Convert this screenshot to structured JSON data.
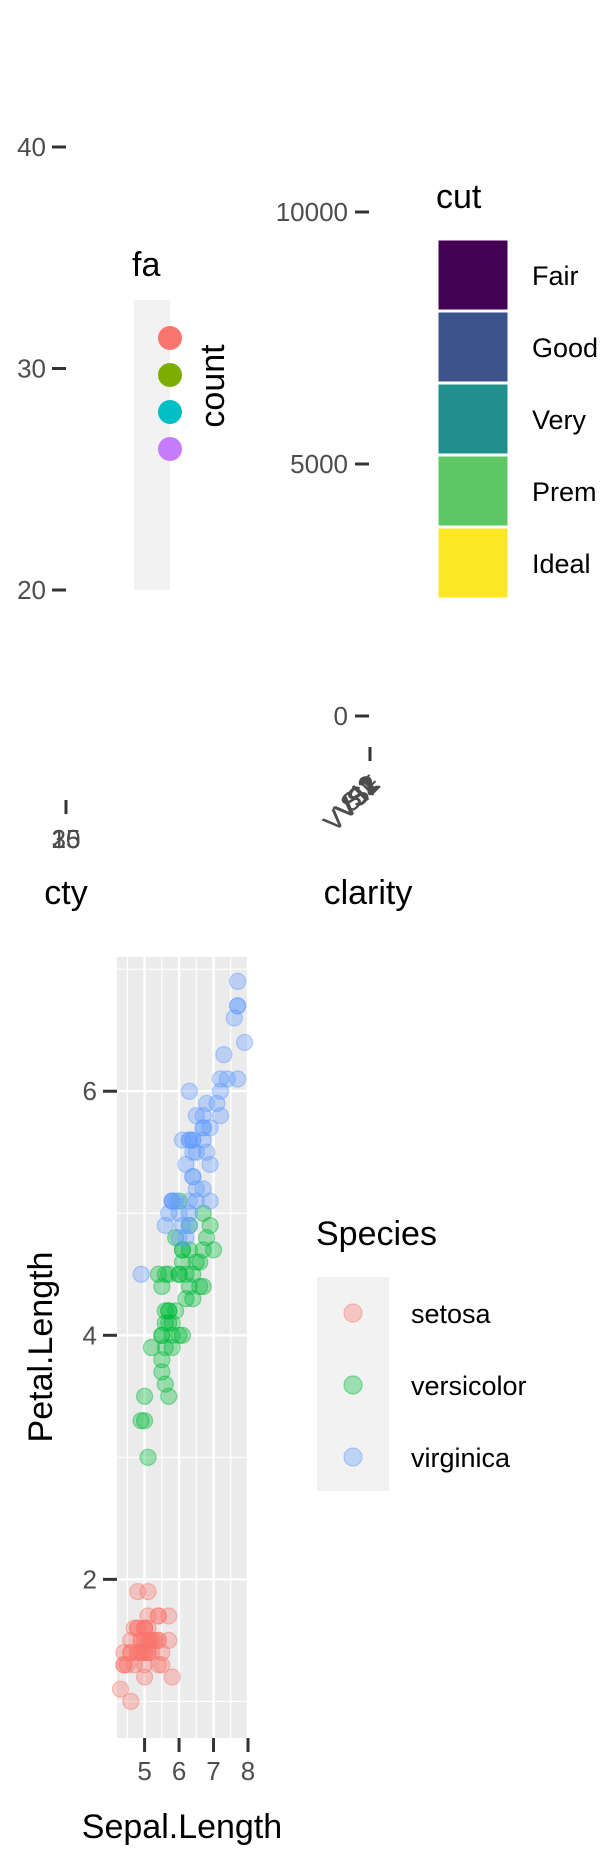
{
  "chart_data": [
    {
      "type": "scatter",
      "xlabel": "cty",
      "ylabel": "",
      "ylim": [
        16,
        44
      ],
      "y_ticks": [
        20,
        30,
        40
      ],
      "x_tick_labels": [
        "20",
        "35",
        "15"
      ],
      "legend": {
        "title": "fa",
        "placement": "right",
        "colors": [
          "#F8766D",
          "#7CAE00",
          "#00BFC4",
          "#C77CFF"
        ]
      }
    },
    {
      "type": "bar",
      "xlabel": "clarity",
      "ylabel": "count",
      "ylim": [
        0,
        10500
      ],
      "y_ticks": [
        0,
        5000,
        10000
      ],
      "x_tick_labels": [
        "I1",
        "SI2",
        "SI1",
        "VS2",
        "VS1",
        "VVS2",
        "VVS1",
        "IF"
      ],
      "legend": {
        "title": "cut",
        "placement": "right",
        "entries": [
          {
            "label": "Fair",
            "color": "#440154"
          },
          {
            "label": "Good",
            "color": "#3B528B"
          },
          {
            "label": "Very",
            "color": "#21908C"
          },
          {
            "label": "Prem",
            "color": "#5DC863"
          },
          {
            "label": "Ideal",
            "color": "#FDE725"
          }
        ]
      }
    },
    {
      "type": "scatter",
      "xlabel": "Sepal.Length",
      "ylabel": "Petal.Length",
      "xlim": [
        4.2,
        8.0
      ],
      "ylim": [
        0.7,
        7.1
      ],
      "x_ticks": [
        5,
        6,
        7,
        8
      ],
      "y_ticks": [
        2,
        4,
        6
      ],
      "grid": true,
      "legend": {
        "title": "Species",
        "placement": "right"
      },
      "series": [
        {
          "name": "setosa",
          "color": "#F8766D",
          "points": [
            [
              5.1,
              1.4
            ],
            [
              4.9,
              1.4
            ],
            [
              4.7,
              1.3
            ],
            [
              4.6,
              1.5
            ],
            [
              5.0,
              1.4
            ],
            [
              5.4,
              1.7
            ],
            [
              4.6,
              1.4
            ],
            [
              5.0,
              1.5
            ],
            [
              4.4,
              1.4
            ],
            [
              4.9,
              1.5
            ],
            [
              5.4,
              1.5
            ],
            [
              4.8,
              1.6
            ],
            [
              4.8,
              1.4
            ],
            [
              4.3,
              1.1
            ],
            [
              5.8,
              1.2
            ],
            [
              5.7,
              1.5
            ],
            [
              5.4,
              1.3
            ],
            [
              5.1,
              1.4
            ],
            [
              5.7,
              1.7
            ],
            [
              5.1,
              1.5
            ],
            [
              5.4,
              1.7
            ],
            [
              5.1,
              1.5
            ],
            [
              4.6,
              1.0
            ],
            [
              5.1,
              1.7
            ],
            [
              4.8,
              1.9
            ],
            [
              5.0,
              1.6
            ],
            [
              5.0,
              1.6
            ],
            [
              5.2,
              1.5
            ],
            [
              5.2,
              1.4
            ],
            [
              4.7,
              1.6
            ],
            [
              4.8,
              1.6
            ],
            [
              5.4,
              1.5
            ],
            [
              5.2,
              1.5
            ],
            [
              5.5,
              1.4
            ],
            [
              4.9,
              1.5
            ],
            [
              5.0,
              1.2
            ],
            [
              5.5,
              1.3
            ],
            [
              4.9,
              1.4
            ],
            [
              4.4,
              1.3
            ],
            [
              5.1,
              1.5
            ],
            [
              5.0,
              1.3
            ],
            [
              4.5,
              1.3
            ],
            [
              4.4,
              1.3
            ],
            [
              5.0,
              1.6
            ],
            [
              5.1,
              1.9
            ],
            [
              4.8,
              1.4
            ],
            [
              5.1,
              1.6
            ],
            [
              4.6,
              1.4
            ],
            [
              5.3,
              1.5
            ],
            [
              5.0,
              1.4
            ]
          ]
        },
        {
          "name": "versicolor",
          "color": "#00BA38",
          "points": [
            [
              7.0,
              4.7
            ],
            [
              6.4,
              4.5
            ],
            [
              6.9,
              4.9
            ],
            [
              5.5,
              4.0
            ],
            [
              6.5,
              4.6
            ],
            [
              5.7,
              4.5
            ],
            [
              6.3,
              4.7
            ],
            [
              4.9,
              3.3
            ],
            [
              6.6,
              4.6
            ],
            [
              5.2,
              3.9
            ],
            [
              5.0,
              3.5
            ],
            [
              5.9,
              4.2
            ],
            [
              6.0,
              4.0
            ],
            [
              6.1,
              4.7
            ],
            [
              5.6,
              3.6
            ],
            [
              6.7,
              4.4
            ],
            [
              5.6,
              4.5
            ],
            [
              5.8,
              4.1
            ],
            [
              6.2,
              4.5
            ],
            [
              5.6,
              3.9
            ],
            [
              5.9,
              4.8
            ],
            [
              6.1,
              4.0
            ],
            [
              6.3,
              4.9
            ],
            [
              6.1,
              4.7
            ],
            [
              6.4,
              4.3
            ],
            [
              6.6,
              4.4
            ],
            [
              6.8,
              4.8
            ],
            [
              6.7,
              5.0
            ],
            [
              6.0,
              4.5
            ],
            [
              5.7,
              3.5
            ],
            [
              5.5,
              3.8
            ],
            [
              5.5,
              3.7
            ],
            [
              5.8,
              3.9
            ],
            [
              6.0,
              5.1
            ],
            [
              5.4,
              4.5
            ],
            [
              6.0,
              4.5
            ],
            [
              6.7,
              4.7
            ],
            [
              6.3,
              4.4
            ],
            [
              5.6,
              4.1
            ],
            [
              5.5,
              4.0
            ],
            [
              5.5,
              4.4
            ],
            [
              6.1,
              4.6
            ],
            [
              5.8,
              4.0
            ],
            [
              5.0,
              3.3
            ],
            [
              5.6,
              4.2
            ],
            [
              5.7,
              4.2
            ],
            [
              5.7,
              4.2
            ],
            [
              6.2,
              4.3
            ],
            [
              5.1,
              3.0
            ],
            [
              5.7,
              4.1
            ]
          ]
        },
        {
          "name": "virginica",
          "color": "#619CFF",
          "points": [
            [
              6.3,
              6.0
            ],
            [
              5.8,
              5.1
            ],
            [
              7.1,
              5.9
            ],
            [
              6.3,
              5.6
            ],
            [
              6.5,
              5.8
            ],
            [
              7.6,
              6.6
            ],
            [
              4.9,
              4.5
            ],
            [
              7.3,
              6.3
            ],
            [
              6.7,
              5.8
            ],
            [
              7.2,
              6.1
            ],
            [
              6.5,
              5.1
            ],
            [
              6.4,
              5.3
            ],
            [
              6.8,
              5.5
            ],
            [
              5.7,
              5.0
            ],
            [
              5.8,
              5.1
            ],
            [
              6.4,
              5.3
            ],
            [
              6.5,
              5.5
            ],
            [
              7.7,
              6.7
            ],
            [
              7.7,
              6.9
            ],
            [
              6.0,
              5.0
            ],
            [
              6.9,
              5.7
            ],
            [
              5.6,
              4.9
            ],
            [
              7.7,
              6.7
            ],
            [
              6.3,
              4.9
            ],
            [
              6.7,
              5.7
            ],
            [
              7.2,
              6.0
            ],
            [
              6.2,
              4.8
            ],
            [
              6.1,
              4.9
            ],
            [
              6.4,
              5.6
            ],
            [
              7.2,
              5.8
            ],
            [
              7.4,
              6.1
            ],
            [
              7.9,
              6.4
            ],
            [
              6.4,
              5.6
            ],
            [
              6.3,
              5.1
            ],
            [
              6.1,
              5.6
            ],
            [
              7.7,
              6.1
            ],
            [
              6.3,
              5.6
            ],
            [
              6.4,
              5.5
            ],
            [
              6.0,
              4.8
            ],
            [
              6.9,
              5.4
            ],
            [
              6.7,
              5.6
            ],
            [
              6.9,
              5.1
            ],
            [
              5.8,
              5.1
            ],
            [
              6.8,
              5.9
            ],
            [
              6.7,
              5.7
            ],
            [
              6.7,
              5.2
            ],
            [
              6.3,
              5.0
            ],
            [
              6.5,
              5.2
            ],
            [
              6.2,
              5.4
            ],
            [
              5.9,
              5.1
            ]
          ]
        }
      ]
    }
  ]
}
